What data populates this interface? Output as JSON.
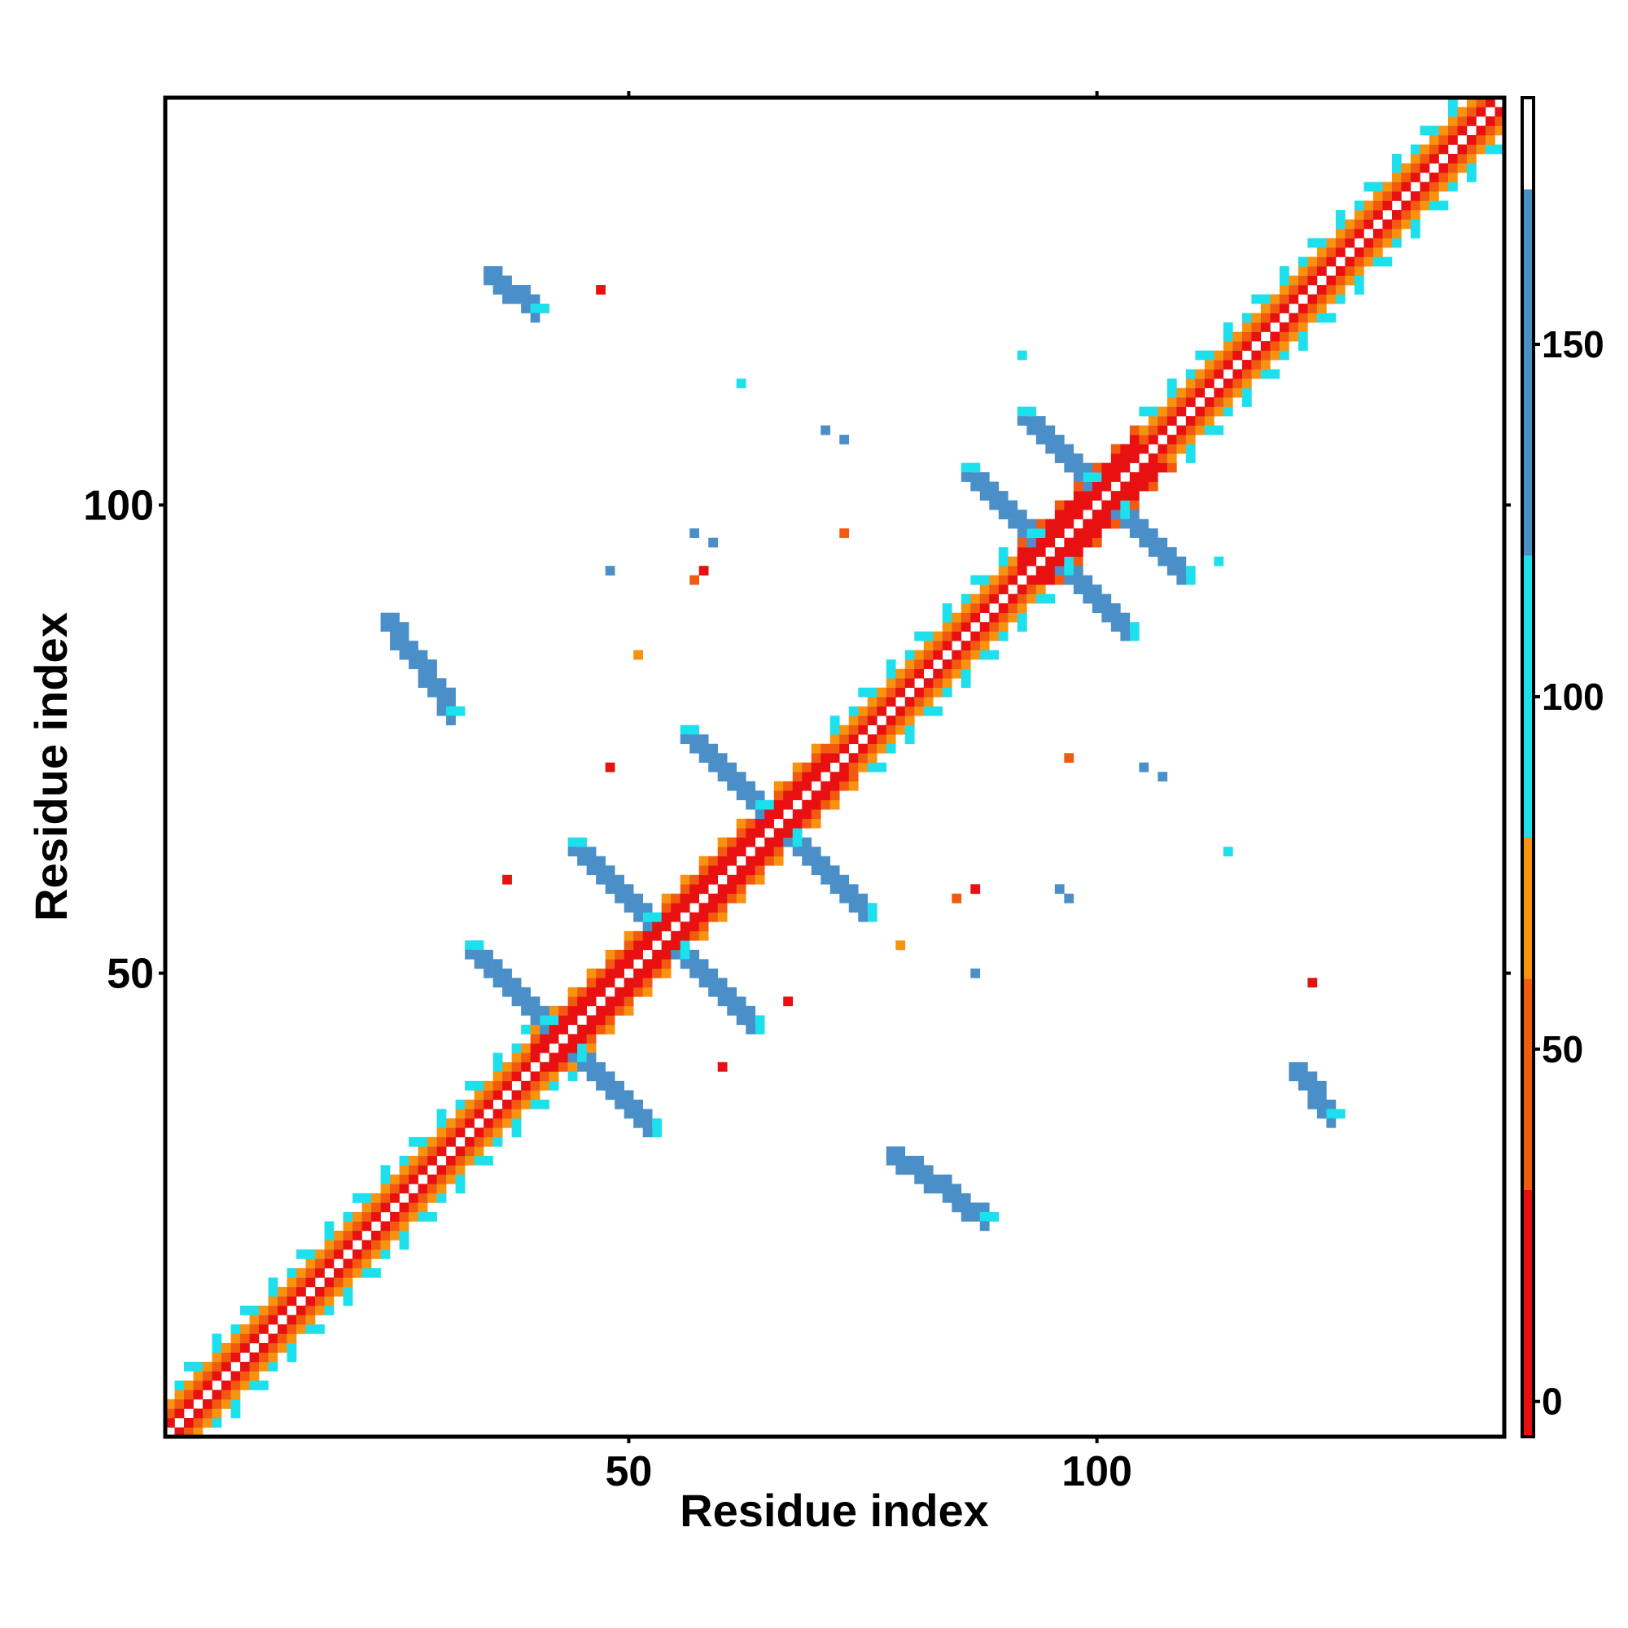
{
  "chart_data": {
    "type": "heatmap",
    "title": "",
    "xlabel": "Residue index",
    "ylabel": "Residue index",
    "xlim": [
      0.5,
      143.5
    ],
    "ylim": [
      0.5,
      143.5
    ],
    "x_ticks": [
      50,
      100
    ],
    "y_ticks": [
      50,
      100
    ],
    "colorbar": {
      "range": [
        -5,
        185
      ],
      "ticks": [
        0,
        50,
        100,
        150
      ],
      "bands": [
        {
          "from": -5,
          "to": 30,
          "color": "#e81010"
        },
        {
          "from": 30,
          "to": 60,
          "color": "#f25a10"
        },
        {
          "from": 60,
          "to": 80,
          "color": "#f7930f"
        },
        {
          "from": 80,
          "to": 120,
          "color": "#1de0ec"
        },
        {
          "from": 120,
          "to": 172,
          "color": "#4b8fc9"
        },
        {
          "from": 172,
          "to": 185,
          "color": "#ffffff"
        }
      ]
    },
    "color_values": {
      "red": 10,
      "orangered": 45,
      "orange": 70,
      "cyan": 100,
      "steelblue": 150
    },
    "contact_map_note": "symmetric contact map; off-diagonal features listed for i<j with mirrored copy",
    "cells": [
      {
        "i": 1,
        "j": 4,
        "ring": "cyan",
        "mid": "orange"
      },
      {
        "i": 1,
        "j": 143,
        "ring": "none",
        "mid": "none"
      }
    ],
    "diagonal_segments": [
      {
        "from": 1,
        "to": 40,
        "near": "red",
        "mid": "orangered",
        "far": "orange",
        "edge": "cyan"
      },
      {
        "from": 40,
        "to": 72,
        "near": "red",
        "mid": "red",
        "far": "orangered",
        "edge": "orange"
      },
      {
        "from": 72,
        "to": 92,
        "near": "red",
        "mid": "orangered",
        "far": "orange",
        "edge": "cyan"
      },
      {
        "from": 92,
        "to": 105,
        "near": "red",
        "mid": "red",
        "far": "red",
        "edge": "orangered"
      },
      {
        "from": 105,
        "to": 143,
        "near": "red",
        "mid": "orangered",
        "far": "orange",
        "edge": "cyan"
      }
    ],
    "antiparallel_strands": [
      {
        "center_i": 43,
        "center_j": 43,
        "half_len": 10,
        "color": "steelblue"
      },
      {
        "center_i": 54,
        "center_j": 54,
        "half_len": 10,
        "color": "steelblue"
      },
      {
        "center_i": 66,
        "center_j": 66,
        "half_len": 10,
        "color": "steelblue"
      },
      {
        "center_i": 95,
        "center_j": 95,
        "half_len": 9,
        "color": "steelblue"
      },
      {
        "center_i": 101,
        "center_j": 101,
        "half_len": 9,
        "color": "steelblue"
      }
    ],
    "parallel_patches": [
      {
        "i_from": 24,
        "i_to": 31,
        "j_from": 78,
        "j_to": 88,
        "color": "steelblue"
      },
      {
        "i_from": 35,
        "i_to": 40,
        "j_from": 121,
        "j_to": 125,
        "color": "steelblue"
      },
      {
        "i_from": 78,
        "i_to": 88,
        "j_from": 24,
        "j_to": 31,
        "color": "steelblue"
      },
      {
        "i_from": 121,
        "i_to": 125,
        "j_from": 35,
        "j_to": 40,
        "color": "steelblue"
      }
    ],
    "scattered_points": [
      {
        "x": 47,
        "y": 123,
        "color": "red"
      },
      {
        "x": 62,
        "y": 113,
        "color": "cyan"
      },
      {
        "x": 71,
        "y": 108,
        "color": "steelblue"
      },
      {
        "x": 73,
        "y": 107,
        "color": "steelblue"
      },
      {
        "x": 57,
        "y": 97,
        "color": "steelblue"
      },
      {
        "x": 59,
        "y": 96,
        "color": "steelblue"
      },
      {
        "x": 73,
        "y": 97,
        "color": "orangered"
      },
      {
        "x": 48,
        "y": 93,
        "color": "steelblue"
      },
      {
        "x": 58,
        "y": 93,
        "color": "red"
      },
      {
        "x": 57,
        "y": 92,
        "color": "orangered"
      },
      {
        "x": 51,
        "y": 84,
        "color": "orange"
      },
      {
        "x": 48,
        "y": 72,
        "color": "red"
      },
      {
        "x": 37,
        "y": 60,
        "color": "red"
      },
      {
        "x": 87,
        "y": 59,
        "color": "red"
      },
      {
        "x": 85,
        "y": 58,
        "color": "orangered"
      },
      {
        "x": 96,
        "y": 59,
        "color": "steelblue"
      },
      {
        "x": 97,
        "y": 58,
        "color": "steelblue"
      },
      {
        "x": 87,
        "y": 50,
        "color": "steelblue"
      },
      {
        "x": 67,
        "y": 47,
        "color": "red"
      },
      {
        "x": 60,
        "y": 40,
        "color": "red"
      },
      {
        "x": 105,
        "y": 72,
        "color": "steelblue"
      },
      {
        "x": 107,
        "y": 71,
        "color": "steelblue"
      },
      {
        "x": 97,
        "y": 73,
        "color": "orangered"
      },
      {
        "x": 114,
        "y": 63,
        "color": "cyan"
      },
      {
        "x": 123,
        "y": 49,
        "color": "red"
      },
      {
        "x": 79,
        "y": 53,
        "color": "orange"
      },
      {
        "x": 113,
        "y": 94,
        "color": "cyan"
      },
      {
        "x": 92,
        "y": 116,
        "color": "cyan"
      }
    ]
  }
}
